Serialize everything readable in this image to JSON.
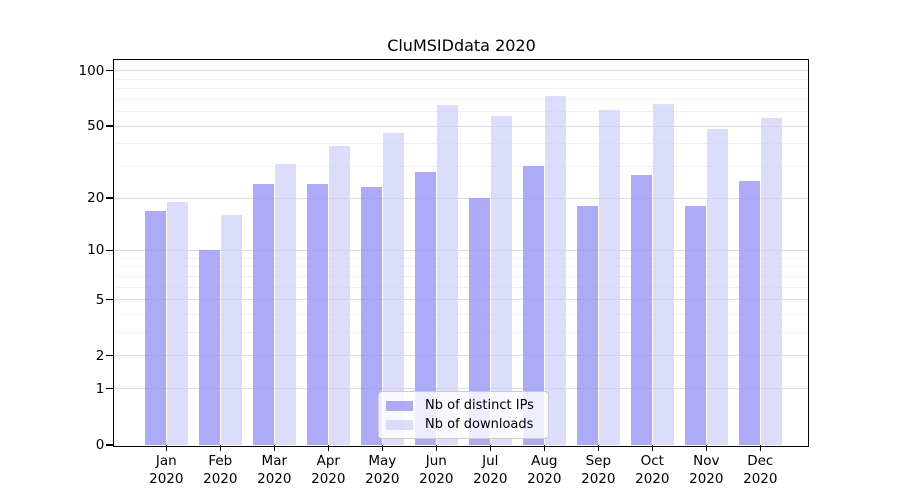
{
  "title": "CluMSIDdata 2020",
  "chart_data": {
    "type": "bar",
    "title": "CluMSIDdata 2020",
    "categories": [
      "Jan 2020",
      "Feb 2020",
      "Mar 2020",
      "Apr 2020",
      "May 2020",
      "Jun 2020",
      "Jul 2020",
      "Aug 2020",
      "Sep 2020",
      "Oct 2020",
      "Nov 2020",
      "Dec 2020"
    ],
    "series": [
      {
        "name": "Nb of distinct IPs",
        "color": "#9696f6",
        "alpha": 0.8,
        "values": [
          17,
          10,
          24,
          24,
          23,
          28,
          20,
          30,
          18,
          27,
          18,
          25
        ]
      },
      {
        "name": "Nb of downloads",
        "color": "#cdcdf9",
        "alpha": 0.7,
        "values": [
          19,
          16,
          31,
          39,
          46,
          65,
          57,
          73,
          61,
          66,
          48,
          55
        ]
      }
    ],
    "xlabel": "",
    "ylabel": "",
    "yscale": "log1p",
    "yticks": [
      0,
      1,
      2,
      5,
      10,
      20,
      50,
      100
    ],
    "minor_yticks": [
      3,
      4,
      6,
      7,
      8,
      9,
      30,
      40,
      60,
      70,
      80,
      90
    ],
    "ylim": [
      0,
      115
    ],
    "grid": true,
    "legend_position": "lower center"
  },
  "colors": {
    "background": "#ffffff",
    "axis": "#000000",
    "major_grid": "#dcdcdc",
    "minor_grid": "#f1f1f1",
    "legend_border": "#cccccc"
  }
}
